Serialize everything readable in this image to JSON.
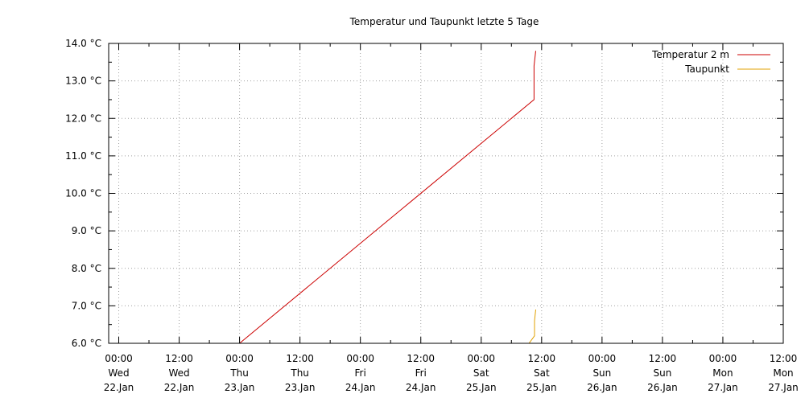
{
  "chart_data": {
    "type": "line",
    "title": "Temperatur und Taupunkt letzte 5 Tage",
    "xlabel": "",
    "ylabel": "",
    "ylim": [
      6.0,
      14.0
    ],
    "y_ticks": [
      "6.0 °C",
      "7.0 °C",
      "8.0 °C",
      "9.0 °C",
      "10.0 °C",
      "11.0 °C",
      "12.0 °C",
      "13.0 °C",
      "14.0 °C"
    ],
    "x_ticks": [
      {
        "time": "00:00",
        "day": "Wed",
        "date": "22.Jan"
      },
      {
        "time": "12:00",
        "day": "Wed",
        "date": "22.Jan"
      },
      {
        "time": "00:00",
        "day": "Thu",
        "date": "23.Jan"
      },
      {
        "time": "12:00",
        "day": "Thu",
        "date": "23.Jan"
      },
      {
        "time": "00:00",
        "day": "Fri",
        "date": "24.Jan"
      },
      {
        "time": "12:00",
        "day": "Fri",
        "date": "24.Jan"
      },
      {
        "time": "00:00",
        "day": "Sat",
        "date": "25.Jan"
      },
      {
        "time": "12:00",
        "day": "Sat",
        "date": "25.Jan"
      },
      {
        "time": "00:00",
        "day": "Sun",
        "date": "26.Jan"
      },
      {
        "time": "12:00",
        "day": "Sun",
        "date": "26.Jan"
      },
      {
        "time": "00:00",
        "day": "Mon",
        "date": "27.Jan"
      },
      {
        "time": "12:00",
        "day": "Mon",
        "date": "27.Jan"
      }
    ],
    "xlim": [
      "2020-01-21 22:00",
      "2020-01-27 12:00"
    ],
    "grid": true,
    "legend_position": "top-right",
    "series": [
      {
        "name": "Temperatur 2 m",
        "color": "#cc0000",
        "points": [
          {
            "x": "2020-01-23 00:00",
            "y": 6.0
          },
          {
            "x": "2020-01-25 10:30",
            "y": 12.5
          },
          {
            "x": "2020-01-25 10:30",
            "y": 13.4
          },
          {
            "x": "2020-01-25 10:50",
            "y": 13.8
          }
        ]
      },
      {
        "name": "Taupunkt",
        "color": "#e0a000",
        "points": [
          {
            "x": "2020-01-25 09:30",
            "y": 6.0
          },
          {
            "x": "2020-01-25 10:35",
            "y": 6.2
          },
          {
            "x": "2020-01-25 10:35",
            "y": 6.6
          },
          {
            "x": "2020-01-25 10:50",
            "y": 6.9
          }
        ]
      }
    ]
  }
}
